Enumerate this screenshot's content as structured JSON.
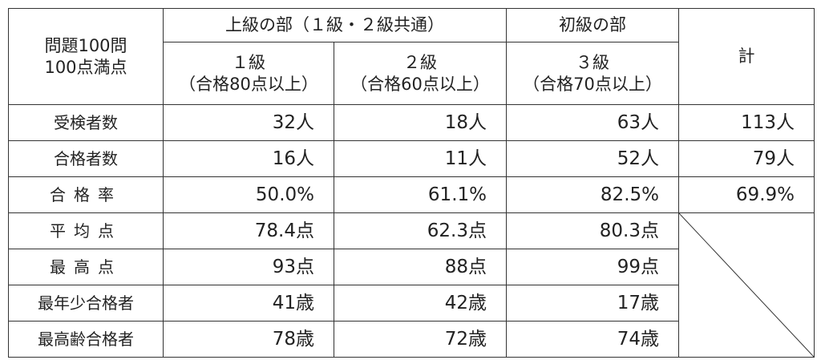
{
  "header": {
    "corner": [
      "問題100問",
      "100点満点"
    ],
    "groups": [
      "上級の部（１級・２級共通）",
      "初級の部"
    ],
    "total": "計",
    "grades": [
      {
        "grade": "１級",
        "criterion": "（合格80点以上）"
      },
      {
        "grade": "２級",
        "criterion": "（合格60点以上）"
      },
      {
        "grade": "３級",
        "criterion": "（合格70点以上）"
      }
    ]
  },
  "rows": [
    {
      "label": "受検者数",
      "cells": [
        "32人",
        "18人",
        "63人",
        "113人"
      ]
    },
    {
      "label": "合格者数",
      "cells": [
        "16人",
        "11人",
        "52人",
        "79人"
      ]
    },
    {
      "label": "合格率",
      "cells": [
        "50.0%",
        "61.1%",
        "82.5%",
        "69.9%"
      ]
    },
    {
      "label": "平均点",
      "cells": [
        "78.4点",
        "62.3点",
        "80.3点"
      ]
    },
    {
      "label": "最高点",
      "cells": [
        "93点",
        "88点",
        "99点"
      ]
    },
    {
      "label": "最年少合格者",
      "cells": [
        "41歳",
        "42歳",
        "17歳"
      ]
    },
    {
      "label": "最高齢合格者",
      "cells": [
        "78歳",
        "72歳",
        "74歳"
      ]
    }
  ]
}
